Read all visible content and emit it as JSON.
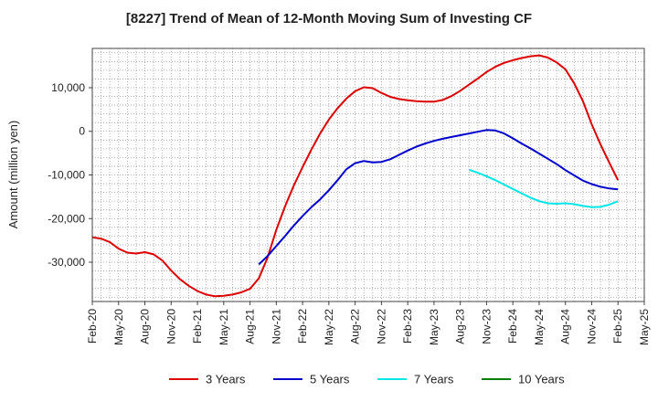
{
  "chart_data": {
    "type": "line",
    "title": "[8227]  Trend of Mean of 12-Month Moving Sum of Investing CF",
    "xlabel": "",
    "ylabel": "Amount (million yen)",
    "ylim": [
      -39000,
      19000
    ],
    "yticks": [
      10000,
      0,
      -10000,
      -20000,
      -30000
    ],
    "ytick_labels": [
      "10,000",
      "0",
      "-10,000",
      "-20,000",
      "-30,000"
    ],
    "xticks": [
      "2020-02",
      "2020-05",
      "2020-08",
      "2020-11",
      "2021-02",
      "2021-05",
      "2021-08",
      "2021-11",
      "2022-02",
      "2022-05",
      "2022-08",
      "2022-11",
      "2023-02",
      "2023-05",
      "2023-08",
      "2023-11",
      "2024-02",
      "2024-05",
      "2024-08",
      "2024-11",
      "2025-02",
      "2025-05"
    ],
    "xtick_labels": [
      "Feb-20",
      "May-20",
      "Aug-20",
      "Nov-20",
      "Feb-21",
      "May-21",
      "Aug-21",
      "Nov-21",
      "Feb-22",
      "May-22",
      "Aug-22",
      "Nov-22",
      "Feb-23",
      "May-23",
      "Aug-23",
      "Nov-23",
      "Feb-24",
      "May-24",
      "Aug-24",
      "Nov-24",
      "Feb-25",
      "May-25"
    ],
    "xlim": [
      "2020-02",
      "2025-05"
    ],
    "grid": true,
    "legend_position": "bottom",
    "series": [
      {
        "name": "3 Years",
        "color": "#dd0000",
        "points": [
          [
            "2020-02",
            -24300
          ],
          [
            "2020-03",
            -24600
          ],
          [
            "2020-04",
            -25400
          ],
          [
            "2020-05",
            -26900
          ],
          [
            "2020-06",
            -27800
          ],
          [
            "2020-07",
            -28000
          ],
          [
            "2020-08",
            -27700
          ],
          [
            "2020-09",
            -28200
          ],
          [
            "2020-10",
            -29600
          ],
          [
            "2020-11",
            -31900
          ],
          [
            "2020-12",
            -33900
          ],
          [
            "2021-01",
            -35400
          ],
          [
            "2021-02",
            -36600
          ],
          [
            "2021-03",
            -37400
          ],
          [
            "2021-04",
            -37800
          ],
          [
            "2021-05",
            -37700
          ],
          [
            "2021-06",
            -37400
          ],
          [
            "2021-07",
            -36900
          ],
          [
            "2021-08",
            -36100
          ],
          [
            "2021-09",
            -33700
          ],
          [
            "2021-10",
            -29000
          ],
          [
            "2021-11",
            -22600
          ],
          [
            "2021-12",
            -17200
          ],
          [
            "2022-01",
            -12400
          ],
          [
            "2022-02",
            -8200
          ],
          [
            "2022-03",
            -4200
          ],
          [
            "2022-04",
            -500
          ],
          [
            "2022-05",
            2700
          ],
          [
            "2022-06",
            5300
          ],
          [
            "2022-07",
            7500
          ],
          [
            "2022-08",
            9200
          ],
          [
            "2022-09",
            10100
          ],
          [
            "2022-10",
            9900
          ],
          [
            "2022-11",
            8800
          ],
          [
            "2022-12",
            7900
          ],
          [
            "2023-01",
            7400
          ],
          [
            "2023-02",
            7100
          ],
          [
            "2023-03",
            6900
          ],
          [
            "2023-04",
            6800
          ],
          [
            "2023-05",
            6800
          ],
          [
            "2023-06",
            7200
          ],
          [
            "2023-07",
            8100
          ],
          [
            "2023-08",
            9300
          ],
          [
            "2023-09",
            10700
          ],
          [
            "2023-10",
            12100
          ],
          [
            "2023-11",
            13600
          ],
          [
            "2023-12",
            14800
          ],
          [
            "2024-01",
            15700
          ],
          [
            "2024-02",
            16300
          ],
          [
            "2024-03",
            16800
          ],
          [
            "2024-04",
            17200
          ],
          [
            "2024-05",
            17400
          ],
          [
            "2024-06",
            16900
          ],
          [
            "2024-07",
            15800
          ],
          [
            "2024-08",
            14200
          ],
          [
            "2024-09",
            11000
          ],
          [
            "2024-10",
            6900
          ],
          [
            "2024-11",
            1600
          ],
          [
            "2024-12",
            -3000
          ],
          [
            "2025-01",
            -7200
          ],
          [
            "2025-02",
            -11200
          ]
        ]
      },
      {
        "name": "5 Years",
        "color": "#0000cc",
        "points": [
          [
            "2021-09",
            -30500
          ],
          [
            "2021-10",
            -28600
          ],
          [
            "2021-11",
            -26300
          ],
          [
            "2021-12",
            -24000
          ],
          [
            "2022-01",
            -21600
          ],
          [
            "2022-02",
            -19400
          ],
          [
            "2022-03",
            -17400
          ],
          [
            "2022-04",
            -15600
          ],
          [
            "2022-05",
            -13500
          ],
          [
            "2022-06",
            -11200
          ],
          [
            "2022-07",
            -8700
          ],
          [
            "2022-08",
            -7300
          ],
          [
            "2022-09",
            -6800
          ],
          [
            "2022-10",
            -7100
          ],
          [
            "2022-11",
            -7000
          ],
          [
            "2022-12",
            -6400
          ],
          [
            "2023-01",
            -5400
          ],
          [
            "2023-02",
            -4400
          ],
          [
            "2023-03",
            -3500
          ],
          [
            "2023-04",
            -2800
          ],
          [
            "2023-05",
            -2200
          ],
          [
            "2023-06",
            -1700
          ],
          [
            "2023-07",
            -1300
          ],
          [
            "2023-08",
            -900
          ],
          [
            "2023-09",
            -500
          ],
          [
            "2023-10",
            -100
          ],
          [
            "2023-11",
            300
          ],
          [
            "2023-12",
            200
          ],
          [
            "2024-01",
            -500
          ],
          [
            "2024-02",
            -1600
          ],
          [
            "2024-03",
            -2800
          ],
          [
            "2024-04",
            -3900
          ],
          [
            "2024-05",
            -5100
          ],
          [
            "2024-06",
            -6300
          ],
          [
            "2024-07",
            -7500
          ],
          [
            "2024-08",
            -8900
          ],
          [
            "2024-09",
            -10100
          ],
          [
            "2024-10",
            -11300
          ],
          [
            "2024-11",
            -12100
          ],
          [
            "2024-12",
            -12700
          ],
          [
            "2025-01",
            -13100
          ],
          [
            "2025-02",
            -13300
          ]
        ]
      },
      {
        "name": "7 Years",
        "color": "#00e5e5",
        "points": [
          [
            "2023-09",
            -8800
          ],
          [
            "2023-10",
            -9500
          ],
          [
            "2023-11",
            -10300
          ],
          [
            "2023-12",
            -11200
          ],
          [
            "2024-01",
            -12200
          ],
          [
            "2024-02",
            -13200
          ],
          [
            "2024-03",
            -14200
          ],
          [
            "2024-04",
            -15200
          ],
          [
            "2024-05",
            -16000
          ],
          [
            "2024-06",
            -16500
          ],
          [
            "2024-07",
            -16600
          ],
          [
            "2024-08",
            -16500
          ],
          [
            "2024-09",
            -16700
          ],
          [
            "2024-10",
            -17100
          ],
          [
            "2024-11",
            -17400
          ],
          [
            "2024-12",
            -17300
          ],
          [
            "2025-01",
            -16800
          ],
          [
            "2025-02",
            -16000
          ]
        ]
      },
      {
        "name": "10 Years",
        "color": "#008000",
        "points": []
      }
    ]
  }
}
